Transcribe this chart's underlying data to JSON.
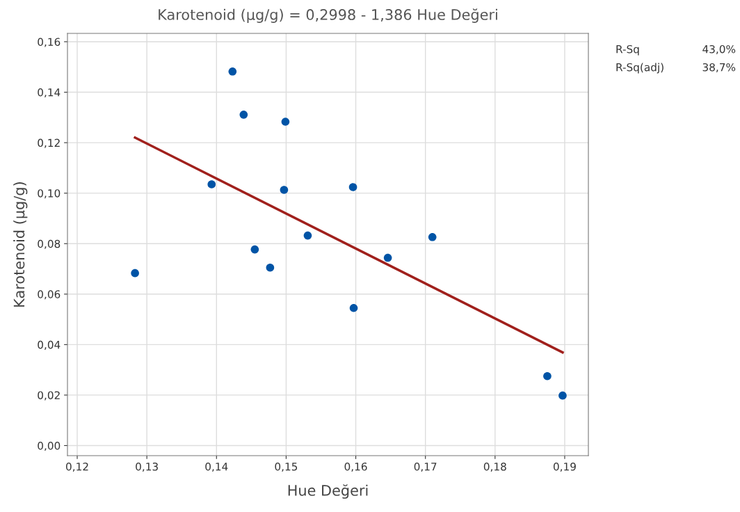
{
  "chart_data": {
    "type": "scatter",
    "title": "Karotenoid (µg/g) = 0,2998 - 1,386 Hue Değeri",
    "xlabel": "Hue Değeri",
    "ylabel": "Karotenoid (µg/g)",
    "series": [
      {
        "marker": "circle",
        "color": "#0054a6",
        "x": [
          0.1283,
          0.1393,
          0.1423,
          0.1439,
          0.1455,
          0.1477,
          0.1497,
          0.1499,
          0.1531,
          0.1596,
          0.1597,
          0.1646,
          0.171,
          0.1875,
          0.1897
        ],
        "values": [
          0.0683,
          0.1035,
          0.1482,
          0.1311,
          0.0777,
          0.0705,
          0.1013,
          0.1283,
          0.0832,
          0.1024,
          0.0545,
          0.0744,
          0.0826,
          0.0275,
          0.0198
        ]
      },
      {
        "type": "line",
        "marker": "none",
        "color": "#a0201c",
        "x": [
          0.1283,
          0.1897
        ],
        "values": [
          0.122,
          0.0369
        ]
      }
    ],
    "xlim": [
      0.1186,
      0.1934
    ],
    "ylim": [
      -0.004,
      0.1633
    ],
    "xticks": [
      {
        "value": 0.12,
        "label": "0,12"
      },
      {
        "value": 0.13,
        "label": "0,13"
      },
      {
        "value": 0.14,
        "label": "0,14"
      },
      {
        "value": 0.15,
        "label": "0,15"
      },
      {
        "value": 0.16,
        "label": "0,16"
      },
      {
        "value": 0.17,
        "label": "0,17"
      },
      {
        "value": 0.18,
        "label": "0,18"
      },
      {
        "value": 0.19,
        "label": "0,19"
      }
    ],
    "yticks": [
      {
        "value": 0.0,
        "label": "0,00"
      },
      {
        "value": 0.02,
        "label": "0,02"
      },
      {
        "value": 0.04,
        "label": "0,04"
      },
      {
        "value": 0.06,
        "label": "0,06"
      },
      {
        "value": 0.08,
        "label": "0,08"
      },
      {
        "value": 0.1,
        "label": "0,10"
      },
      {
        "value": 0.12,
        "label": "0,12"
      },
      {
        "value": 0.14,
        "label": "0,14"
      },
      {
        "value": 0.16,
        "label": "0,16"
      }
    ],
    "grid": true,
    "annotations": [
      "R-Sq",
      "43,0%",
      "R-Sq(adj)",
      "38,7%"
    ]
  }
}
